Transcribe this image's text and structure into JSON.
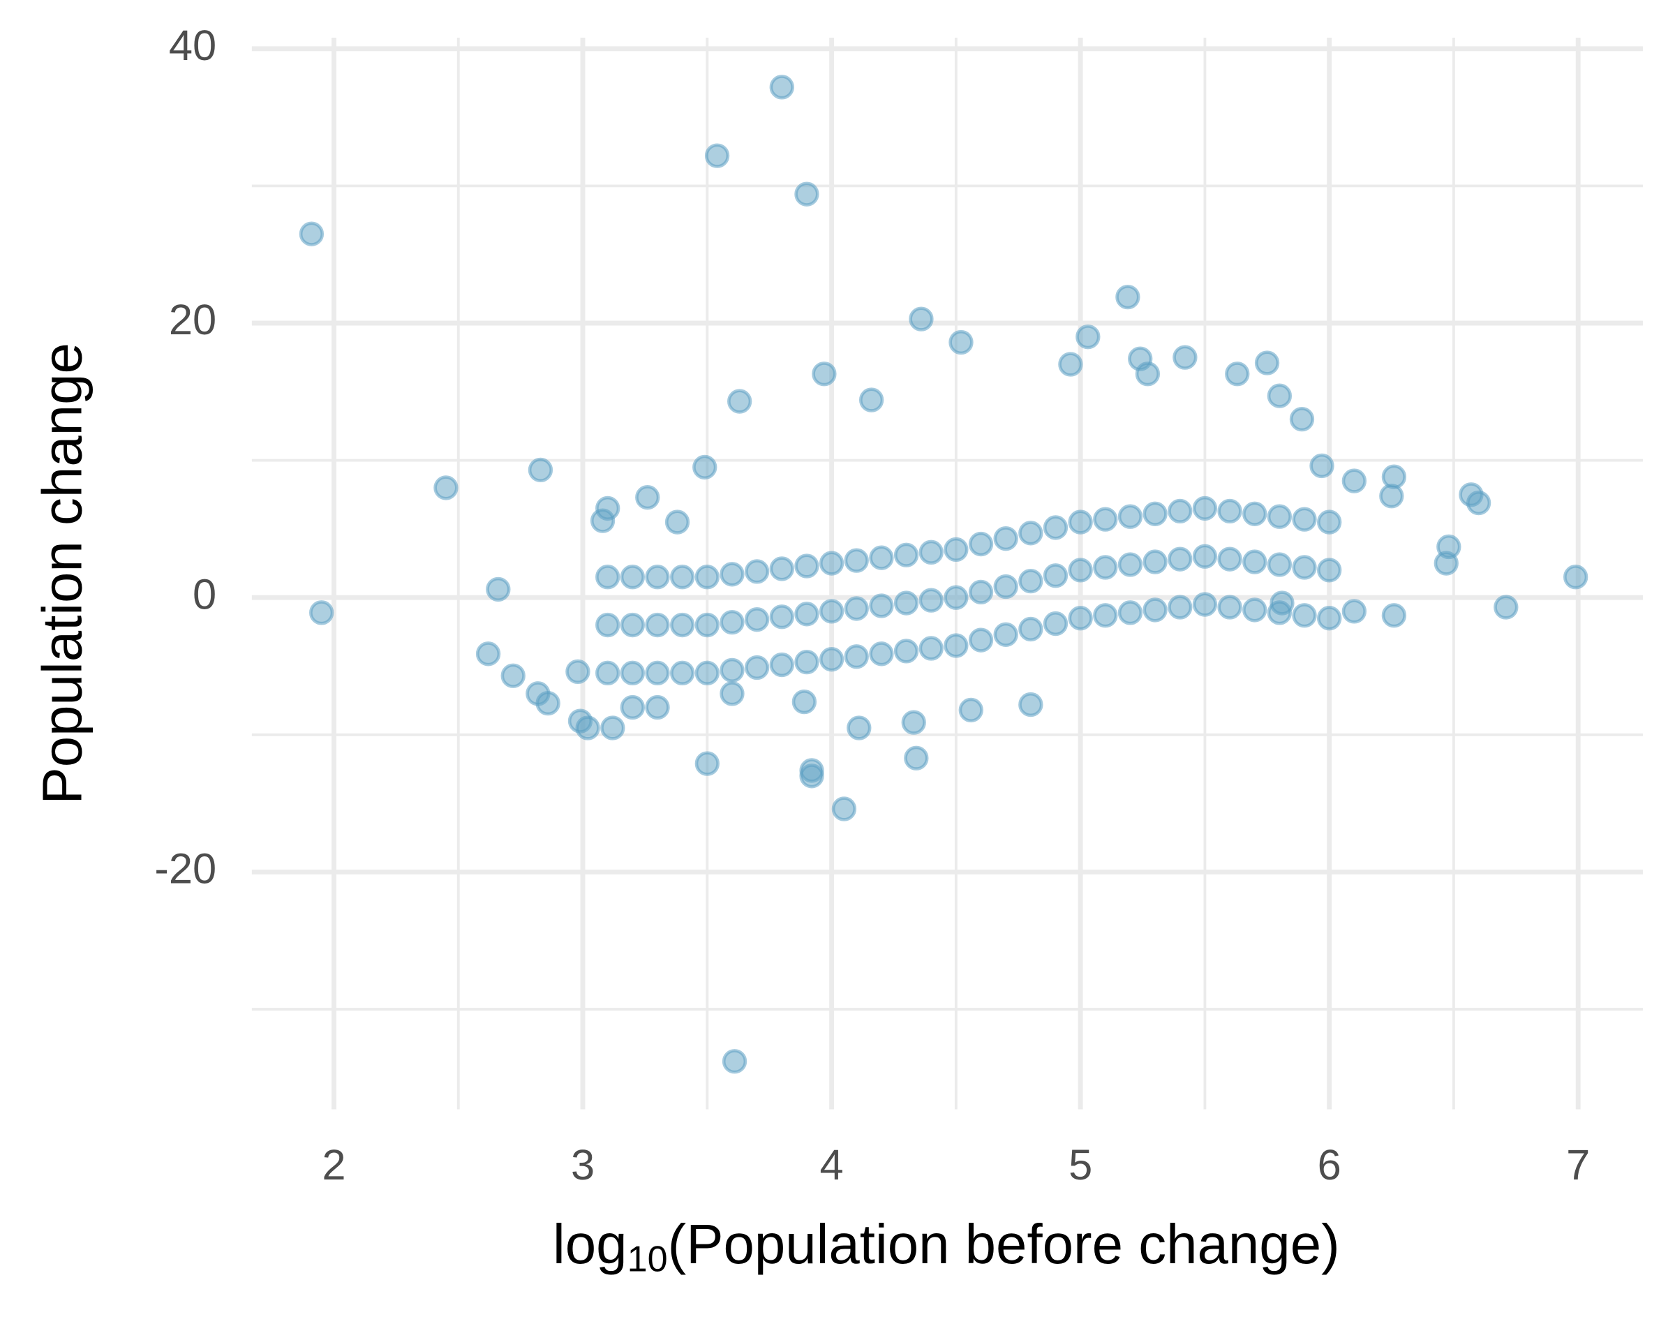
{
  "chart_data": {
    "type": "scatter",
    "xlabel": [
      "log",
      "10",
      "(Population before change)"
    ],
    "ylabel": "Population change",
    "xlim": [
      1.67,
      7.26
    ],
    "ylim": [
      -37.3,
      40.8
    ],
    "xticks": [
      2,
      3,
      4,
      5,
      6,
      7
    ],
    "yticks": [
      -20,
      0,
      20,
      40
    ],
    "xminor": [
      2.5,
      3.5,
      4.5,
      5.5,
      6.5
    ],
    "yminor": [
      -30,
      -10,
      10,
      30
    ],
    "grid": true,
    "series": [
      {
        "color": "#5b9fc2",
        "x": [
          1.91,
          1.95,
          2.45,
          2.62,
          2.66,
          2.72,
          2.83,
          2.82,
          2.86,
          2.98,
          2.99,
          3.02,
          3.12,
          3.08,
          3.1,
          3.26,
          3.38,
          3.49,
          3.5,
          3.54,
          3.61,
          3.63,
          3.8,
          3.9,
          3.92,
          3.92,
          4.05,
          4.11,
          3.97,
          4.16,
          4.36,
          4.34,
          4.52,
          4.96,
          5.03,
          5.19,
          5.24,
          5.27,
          5.42,
          5.63,
          5.75,
          5.8,
          5.89,
          5.97,
          6.1,
          6.25,
          6.26,
          6.57,
          6.6,
          6.48,
          6.47,
          6.71,
          6.99,
          6.26,
          6.1,
          5.81,
          4.8,
          4.56,
          4.33,
          3.89,
          3.6,
          3.3,
          3.2,
          3.1,
          3.1,
          3.1,
          3.2,
          3.2,
          3.2,
          3.3,
          3.3,
          3.3,
          3.4,
          3.4,
          3.4,
          3.5,
          3.5,
          3.5,
          3.6,
          3.6,
          3.6,
          3.7,
          3.7,
          3.7,
          3.8,
          3.8,
          3.8,
          3.9,
          3.9,
          3.9,
          4.0,
          4.0,
          4.0,
          4.1,
          4.1,
          4.1,
          4.2,
          4.2,
          4.2,
          4.3,
          4.3,
          4.3,
          4.4,
          4.4,
          4.4,
          4.5,
          4.5,
          4.5,
          4.6,
          4.6,
          4.6,
          4.7,
          4.7,
          4.7,
          4.8,
          4.8,
          4.8,
          4.9,
          4.9,
          4.9,
          5.0,
          5.0,
          5.0,
          5.1,
          5.1,
          5.1,
          5.2,
          5.2,
          5.2,
          5.3,
          5.3,
          5.3,
          5.4,
          5.4,
          5.4,
          5.5,
          5.5,
          5.5,
          5.6,
          5.6,
          5.6,
          5.7,
          5.7,
          5.7,
          5.8,
          5.8,
          5.8,
          5.9,
          5.9,
          5.9,
          6.0,
          6.0,
          6.0
        ],
        "values": [
          26.5,
          -1.1,
          8.0,
          -4.1,
          0.6,
          -5.7,
          9.3,
          -7.0,
          -7.7,
          -5.4,
          -9.0,
          -9.5,
          -9.5,
          5.6,
          6.5,
          7.3,
          5.5,
          9.5,
          -12.1,
          32.2,
          -33.8,
          14.3,
          37.2,
          29.4,
          -12.6,
          -13.0,
          -15.4,
          -9.5,
          16.3,
          14.4,
          20.3,
          -11.7,
          18.6,
          17.0,
          19.0,
          21.9,
          17.4,
          16.3,
          17.5,
          16.3,
          17.1,
          14.7,
          13.0,
          9.6,
          8.5,
          7.4,
          8.8,
          7.5,
          6.9,
          3.7,
          2.5,
          -0.7,
          1.5,
          -1.3,
          -1.0,
          -0.4,
          -7.8,
          -8.2,
          -9.1,
          -7.6,
          -7.0,
          -8.0,
          -8.0,
          1.5,
          -2,
          -5.5,
          1.5,
          -2,
          -5.5,
          1.5,
          -2,
          -5.5,
          1.5,
          -2,
          -5.5,
          1.5,
          -2,
          -5.5,
          1.7,
          -1.8,
          -5.3,
          1.9,
          -1.6,
          -5.1,
          2.1,
          -1.4,
          -4.9,
          2.3,
          -1.2,
          -4.7,
          2.5,
          -1,
          -4.5,
          2.7,
          -0.8,
          -4.3,
          2.9,
          -0.6,
          -4.1,
          3.1,
          -0.4,
          -3.9,
          3.3,
          -0.2,
          -3.7,
          3.5,
          0,
          -3.5,
          3.9,
          0.4,
          -3.1,
          4.3,
          0.8,
          -2.7,
          4.7,
          1.2,
          -2.3,
          5.1,
          1.6,
          -1.9,
          5.5,
          2,
          -1.5,
          5.7,
          2.2,
          -1.3,
          5.9,
          2.4,
          -1.1,
          6.1,
          2.6,
          -0.9,
          6.3,
          2.8,
          -0.7,
          6.5,
          3,
          -0.5,
          6.3,
          2.8,
          -0.7,
          6.1,
          2.6,
          -0.9,
          5.9,
          2.4,
          -1.1,
          5.7,
          2.2,
          -1.3,
          5.5,
          2,
          -1.5
        ]
      }
    ]
  }
}
